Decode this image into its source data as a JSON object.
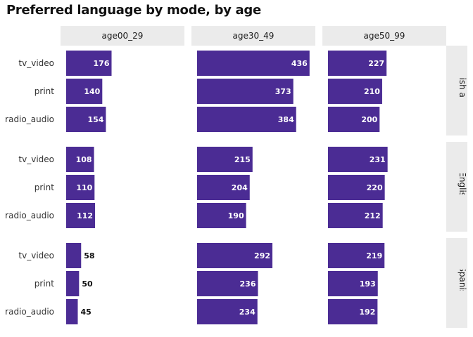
{
  "chart_data": {
    "type": "bar",
    "orientation": "horizontal",
    "title": "Preferred language by mode, by age",
    "facet_columns": [
      "age00_29",
      "age30_49",
      "age50_99"
    ],
    "facet_rows": [
      "Both English and Spanish",
      "English",
      "Spanish"
    ],
    "categories": [
      "tv_video",
      "print",
      "radio_audio"
    ],
    "bar_color": "#4B2C94",
    "panels": [
      {
        "row": "Both English and Spanish",
        "column": "age00_29",
        "values": [
          176,
          140,
          154
        ]
      },
      {
        "row": "Both English and Spanish",
        "column": "age30_49",
        "values": [
          436,
          373,
          384
        ]
      },
      {
        "row": "Both English and Spanish",
        "column": "age50_99",
        "values": [
          227,
          210,
          200
        ]
      },
      {
        "row": "English",
        "column": "age00_29",
        "values": [
          108,
          110,
          112
        ]
      },
      {
        "row": "English",
        "column": "age30_49",
        "values": [
          215,
          204,
          190
        ]
      },
      {
        "row": "English",
        "column": "age50_99",
        "values": [
          231,
          220,
          212
        ]
      },
      {
        "row": "Spanish",
        "column": "age00_29",
        "values": [
          58,
          50,
          45
        ]
      },
      {
        "row": "Spanish",
        "column": "age30_49",
        "values": [
          292,
          236,
          234
        ]
      },
      {
        "row": "Spanish",
        "column": "age50_99",
        "values": [
          219,
          193,
          192
        ]
      }
    ],
    "xlim": [
      0,
      460
    ],
    "grid": false,
    "legend": "none"
  }
}
